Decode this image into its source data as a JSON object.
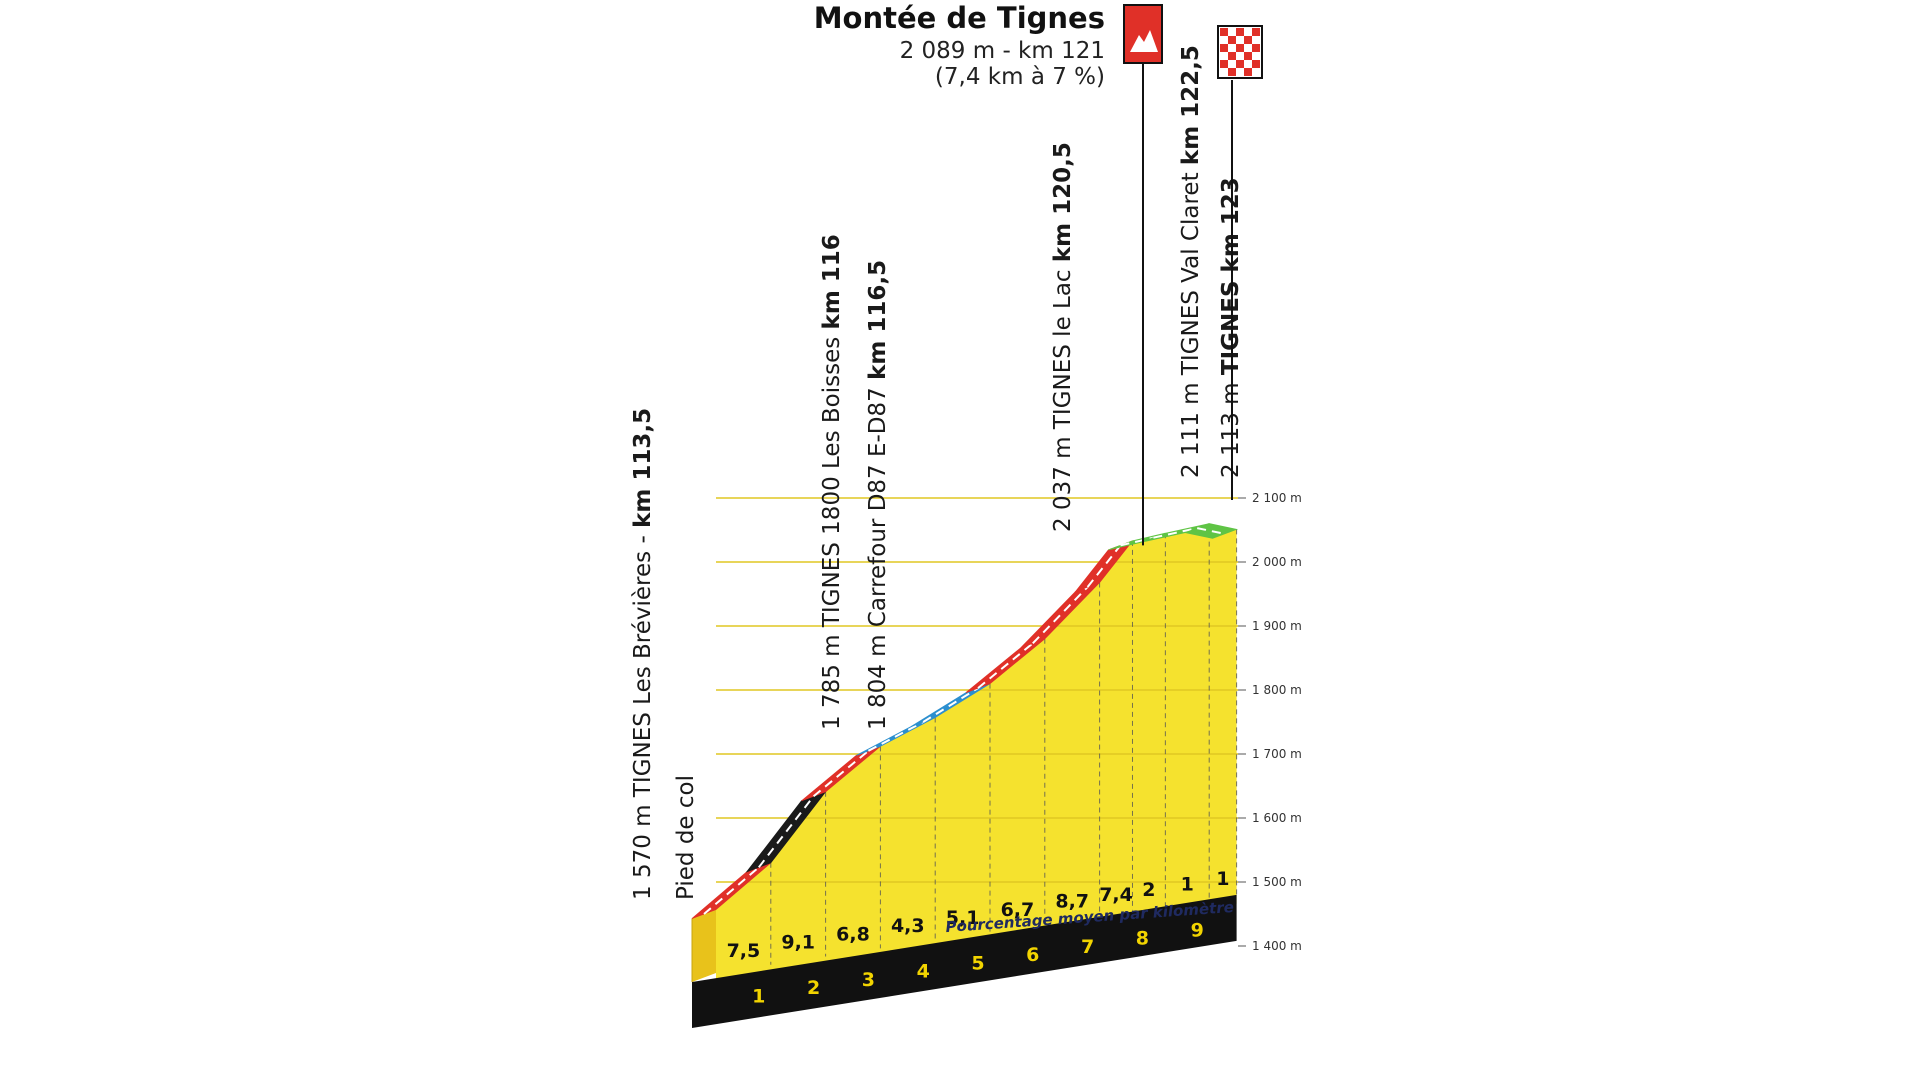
{
  "chart_data": {
    "type": "area",
    "title": "Montée de Tignes",
    "summit": {
      "name": "Montée de Tignes",
      "details": "2 089 m - km 121",
      "gradient_info": "(7,4 km à 7 %)",
      "icon": "mountain-icon",
      "finish_icon": "checkered-flag-icon"
    },
    "x_unit": "km",
    "ylim": [
      1400,
      2100
    ],
    "y_ticks": [
      "1 400 m",
      "1 500 m",
      "1 600 m",
      "1 700 m",
      "1 800 m",
      "1 900 m",
      "2 000 m",
      "2 100 m"
    ],
    "y_tick_values": [
      1400,
      1500,
      1600,
      1700,
      1800,
      1900,
      2000,
      2100
    ],
    "km_markers": [
      "1",
      "2",
      "3",
      "4",
      "5",
      "6",
      "7",
      "8",
      "9"
    ],
    "km_marker_positions": [
      1,
      2,
      3,
      4,
      5,
      6,
      7,
      8,
      9
    ],
    "points": [
      {
        "x": 0,
        "y": 1457
      },
      {
        "x": 1,
        "y": 1530
      },
      {
        "x": 2,
        "y": 1641
      },
      {
        "x": 3,
        "y": 1712
      },
      {
        "x": 4,
        "y": 1757
      },
      {
        "x": 5,
        "y": 1810
      },
      {
        "x": 6,
        "y": 1880
      },
      {
        "x": 7,
        "y": 1968
      },
      {
        "x": 7.6,
        "y": 2033
      },
      {
        "x": 8.2,
        "y": 2045
      },
      {
        "x": 9,
        "y": 2060
      },
      {
        "x": 9.5,
        "y": 2051
      }
    ],
    "segments": [
      {
        "from": 0,
        "to": 1,
        "grade": "7,5",
        "color": "#e03028"
      },
      {
        "from": 1,
        "to": 2,
        "grade": "9,1",
        "color": "#1a1a1a"
      },
      {
        "from": 2,
        "to": 3,
        "grade": "6,8",
        "color": "#e03028"
      },
      {
        "from": 3,
        "to": 4,
        "grade": "4,3",
        "color": "#2c8fcf"
      },
      {
        "from": 4,
        "to": 5,
        "grade": "5,1",
        "color": "#2c8fcf"
      },
      {
        "from": 5,
        "to": 6,
        "grade": "6,7",
        "color": "#e03028"
      },
      {
        "from": 6,
        "to": 7,
        "grade": "8,7",
        "color": "#e03028"
      },
      {
        "from": 7,
        "to": 7.6,
        "grade": "7,4",
        "color": "#e03028"
      },
      {
        "from": 7.6,
        "to": 8.2,
        "grade": "2",
        "color": "#5fc445"
      },
      {
        "from": 8.2,
        "to": 9,
        "grade": "1",
        "color": "#5fc445"
      },
      {
        "from": 9,
        "to": 9.5,
        "grade": "1",
        "color": "#5fc445"
      }
    ],
    "waypoints": [
      {
        "at": 0.3,
        "normal": "1 570 m TIGNES Les Brévières - ",
        "bold": "km 113,5"
      },
      {
        "at": 0.3,
        "normal": "Pied de col",
        "bold": ""
      },
      {
        "at": 2.55,
        "normal": "1 785 m TIGNES 1800 Les Boisses ",
        "bold": "km 116"
      },
      {
        "at": 2.55,
        "normal": "1 804 m Carrefour D87 E-D87 ",
        "bold": "km 116,5"
      },
      {
        "at": 6.7,
        "normal": "2 037 m TIGNES le Lac ",
        "bold": "km 120,5"
      },
      {
        "at": 8.2,
        "normal": "2 111 m TIGNES Val Claret ",
        "bold": "km 122,5"
      },
      {
        "at": 8.6,
        "normal": "2 113 m ",
        "bold": "TIGNES km 123"
      }
    ],
    "legend_caption": "Pourcentage moyen par kilomètre"
  }
}
